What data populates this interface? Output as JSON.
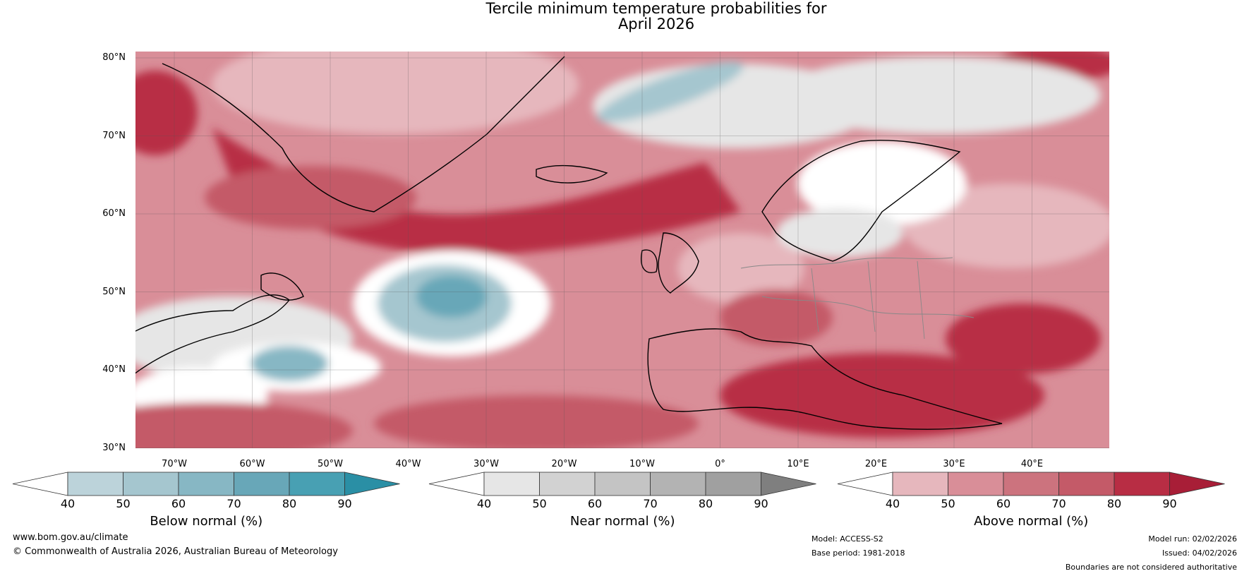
{
  "title": {
    "line1": "Tercile minimum temperature probabilities for",
    "line2": "April 2026"
  },
  "map": {
    "lat_labels": [
      "80°N",
      "70°N",
      "60°N",
      "50°N",
      "40°N",
      "30°N"
    ],
    "lon_labels": [
      "70°W",
      "60°W",
      "50°W",
      "40°W",
      "30°W",
      "20°W",
      "10°W",
      "0°",
      "10°E",
      "20°E",
      "30°E",
      "40°E"
    ]
  },
  "legends": [
    {
      "label": "Below normal (%)",
      "ticks": [
        "40",
        "50",
        "60",
        "70",
        "80",
        "90"
      ],
      "colors": [
        "#ffffff",
        "#bcd3da",
        "#a5c6cf",
        "#87b7c4",
        "#68a7b8",
        "#48a0b3",
        "#2a8fa5"
      ]
    },
    {
      "label": "Near normal (%)",
      "ticks": [
        "40",
        "50",
        "60",
        "70",
        "80",
        "90"
      ],
      "colors": [
        "#ffffff",
        "#e6e6e6",
        "#d2d2d2",
        "#c4c4c4",
        "#b3b3b3",
        "#a0a0a0",
        "#7f7f7f"
      ]
    },
    {
      "label": "Above normal (%)",
      "ticks": [
        "40",
        "50",
        "60",
        "70",
        "80",
        "90"
      ],
      "colors": [
        "#ffffff",
        "#e6b7bd",
        "#d98e98",
        "#cc737e",
        "#c45a68",
        "#b82d44",
        "#a81e37"
      ]
    }
  ],
  "footer": {
    "website": "www.bom.gov.au/climate",
    "copyright": "© Commonwealth of Australia 2026, Australian Bureau of Meteorology",
    "model": "Model: ACCESS-S2",
    "base_period": "Base period: 1981-2018",
    "model_run": "Model run: 02/02/2026",
    "issued": "Issued: 04/02/2026",
    "disclaimer": "Boundaries are not considered authoritative"
  }
}
